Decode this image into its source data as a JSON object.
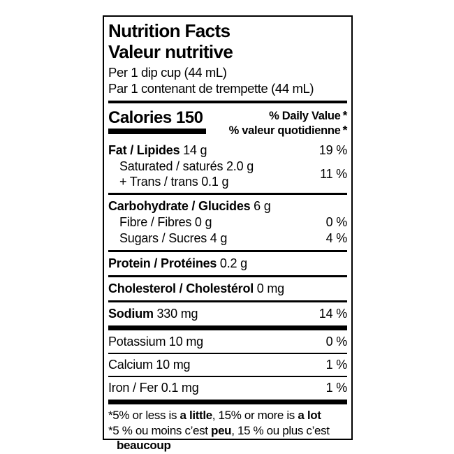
{
  "label": {
    "title_en": "Nutrition Facts",
    "title_fr": "Valeur nutritive",
    "serving_en": "Per 1 dip cup (44 mL)",
    "serving_fr": "Par 1 contenant de trempette (44 mL)",
    "calories": {
      "label": "Calories",
      "value": "150"
    },
    "dv_header_en": "% Daily Value",
    "dv_header_fr": "% valeur quotidienne",
    "dv_asterisk": "*",
    "rows": {
      "fat": {
        "label": "Fat / Lipides",
        "amount": "14 g",
        "dv": "19 %"
      },
      "saturated": {
        "label": "Saturated / saturés",
        "amount": "2.0 g"
      },
      "trans": {
        "label": "+ Trans / trans",
        "amount": "0.1 g"
      },
      "sat_trans_dv": "11 %",
      "carbohydrate": {
        "label": "Carbohydrate / Glucides",
        "amount": "6 g"
      },
      "fibre": {
        "label": "Fibre / Fibres",
        "amount": "0 g",
        "dv": "0 %"
      },
      "sugars": {
        "label": "Sugars / Sucres",
        "amount": "4 g",
        "dv": "4 %"
      },
      "protein": {
        "label": "Protein / Protéines",
        "amount": "0.2 g"
      },
      "cholesterol": {
        "label": "Cholesterol / Cholestérol",
        "amount": "0 mg"
      },
      "sodium": {
        "label": "Sodium",
        "amount": "330 mg",
        "dv": "14 %"
      },
      "potassium": {
        "label": "Potassium",
        "amount": "10 mg",
        "dv": "0 %"
      },
      "calcium": {
        "label": "Calcium",
        "amount": "10 mg",
        "dv": "1 %"
      },
      "iron": {
        "label": "Iron / Fer",
        "amount": "0.1 mg",
        "dv": "1 %"
      }
    },
    "footnotes": {
      "en": {
        "star": "*",
        "pre": "5% or less is ",
        "bold1": "a little",
        "mid": ", 15% or more is ",
        "bold2": "a lot"
      },
      "fr": {
        "star": "*",
        "pre": "5 % ou moins c’est ",
        "bold1": "peu",
        "mid": ", 15 % ou plus c’est ",
        "bold2": "beaucoup"
      }
    },
    "colors": {
      "ink": "#000000",
      "background": "#ffffff"
    }
  }
}
